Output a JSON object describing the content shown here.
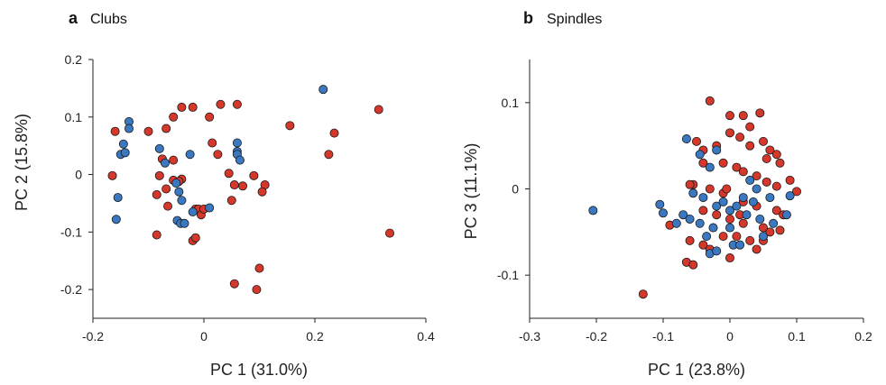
{
  "colors": {
    "series_red": "#d5382b",
    "series_blue": "#3a78c2"
  },
  "chart_data": [
    {
      "type": "scatter",
      "panel_letter": "a",
      "panel_title": "Clubs",
      "xlabel": "PC 1 (31.0%)",
      "ylabel": "PC 2 (15.8%)",
      "xlim": [
        -0.2,
        0.4
      ],
      "ylim": [
        -0.25,
        0.2
      ],
      "xticks": [
        -0.2,
        0,
        0.2,
        0.4
      ],
      "yticks": [
        -0.2,
        -0.1,
        0,
        0.1,
        0.2
      ],
      "xtick_labels": [
        "-0.2",
        "0",
        "0.2",
        "0.4"
      ],
      "ytick_labels": [
        "-0.2",
        "-0.1",
        "0",
        "0.1",
        "0.2"
      ],
      "grid": false,
      "series": [
        {
          "color": "#d5382b",
          "points": [
            [
              -0.16,
              0.075
            ],
            [
              -0.165,
              -0.002
            ],
            [
              -0.1,
              0.075
            ],
            [
              -0.075,
              0.027
            ],
            [
              -0.068,
              0.08
            ],
            [
              -0.055,
              0.1
            ],
            [
              -0.04,
              0.117
            ],
            [
              -0.02,
              0.117
            ],
            [
              0.01,
              0.1
            ],
            [
              0.03,
              0.122
            ],
            [
              0.06,
              0.122
            ],
            [
              0.015,
              0.055
            ],
            [
              0.025,
              0.035
            ],
            [
              -0.055,
              0.025
            ],
            [
              -0.08,
              -0.002
            ],
            [
              -0.068,
              -0.025
            ],
            [
              -0.055,
              -0.01
            ],
            [
              -0.04,
              -0.008
            ],
            [
              -0.045,
              -0.012
            ],
            [
              -0.065,
              -0.055
            ],
            [
              -0.085,
              -0.105
            ],
            [
              -0.085,
              -0.035
            ],
            [
              -0.015,
              -0.06
            ],
            [
              -0.01,
              -0.06
            ],
            [
              -0.005,
              -0.07
            ],
            [
              0.0,
              -0.06
            ],
            [
              -0.02,
              -0.115
            ],
            [
              -0.015,
              -0.11
            ],
            [
              0.045,
              0.002
            ],
            [
              0.055,
              -0.018
            ],
            [
              0.05,
              -0.045
            ],
            [
              0.07,
              -0.02
            ],
            [
              0.09,
              -0.002
            ],
            [
              0.11,
              -0.018
            ],
            [
              0.105,
              -0.03
            ],
            [
              0.155,
              0.085
            ],
            [
              0.225,
              0.035
            ],
            [
              0.235,
              0.072
            ],
            [
              0.315,
              0.113
            ],
            [
              0.335,
              -0.102
            ],
            [
              0.055,
              -0.19
            ],
            [
              0.095,
              -0.2
            ],
            [
              0.1,
              -0.163
            ]
          ]
        },
        {
          "color": "#3a78c2",
          "points": [
            [
              -0.135,
              0.092
            ],
            [
              -0.135,
              0.08
            ],
            [
              -0.145,
              0.053
            ],
            [
              -0.15,
              0.035
            ],
            [
              -0.142,
              0.038
            ],
            [
              -0.155,
              -0.04
            ],
            [
              -0.158,
              -0.078
            ],
            [
              -0.08,
              0.045
            ],
            [
              -0.07,
              0.02
            ],
            [
              -0.05,
              -0.015
            ],
            [
              -0.045,
              -0.03
            ],
            [
              -0.04,
              -0.045
            ],
            [
              -0.048,
              -0.08
            ],
            [
              -0.042,
              -0.085
            ],
            [
              -0.035,
              -0.085
            ],
            [
              -0.02,
              -0.065
            ],
            [
              -0.025,
              0.035
            ],
            [
              0.01,
              -0.058
            ],
            [
              0.06,
              0.055
            ],
            [
              0.06,
              0.04
            ],
            [
              0.06,
              0.035
            ],
            [
              0.065,
              0.025
            ],
            [
              0.215,
              0.148
            ]
          ]
        }
      ]
    },
    {
      "type": "scatter",
      "panel_letter": "b",
      "panel_title": "Spindles",
      "xlabel": "PC 1 (23.8%)",
      "ylabel": "PC 3 (11.1%)",
      "xlim": [
        -0.3,
        0.2
      ],
      "ylim": [
        -0.15,
        0.15
      ],
      "xticks": [
        -0.3,
        -0.2,
        -0.1,
        0,
        0.1,
        0.2
      ],
      "yticks": [
        -0.1,
        0,
        0.1
      ],
      "xtick_labels": [
        "-0.3",
        "-0.2",
        "-0.1",
        "0",
        "0.1",
        "0.2"
      ],
      "ytick_labels": [
        "-0.1",
        "0",
        "0.1"
      ],
      "grid": false,
      "series": [
        {
          "color": "#d5382b",
          "points": [
            [
              -0.03,
              0.102
            ],
            [
              0.0,
              0.085
            ],
            [
              0.02,
              0.085
            ],
            [
              0.045,
              0.088
            ],
            [
              0.03,
              0.072
            ],
            [
              0.0,
              0.065
            ],
            [
              0.05,
              0.055
            ],
            [
              0.06,
              0.045
            ],
            [
              0.07,
              0.04
            ],
            [
              0.075,
              0.03
            ],
            [
              0.055,
              0.035
            ],
            [
              -0.05,
              0.055
            ],
            [
              -0.04,
              0.045
            ],
            [
              -0.02,
              0.05
            ],
            [
              0.015,
              0.06
            ],
            [
              0.03,
              0.05
            ],
            [
              -0.04,
              0.03
            ],
            [
              -0.01,
              0.03
            ],
            [
              0.01,
              0.025
            ],
            [
              0.02,
              0.02
            ],
            [
              0.04,
              0.015
            ],
            [
              0.055,
              0.008
            ],
            [
              0.07,
              0.003
            ],
            [
              0.1,
              -0.003
            ],
            [
              0.09,
              0.01
            ],
            [
              -0.055,
              0.005
            ],
            [
              -0.06,
              0.005
            ],
            [
              -0.03,
              0.0
            ],
            [
              -0.01,
              -0.005
            ],
            [
              0.02,
              -0.015
            ],
            [
              0.04,
              -0.02
            ],
            [
              0.07,
              -0.025
            ],
            [
              0.08,
              -0.03
            ],
            [
              -0.04,
              -0.025
            ],
            [
              -0.02,
              -0.03
            ],
            [
              0.0,
              -0.035
            ],
            [
              0.02,
              -0.04
            ],
            [
              0.05,
              -0.045
            ],
            [
              0.06,
              -0.05
            ],
            [
              0.075,
              -0.048
            ],
            [
              -0.09,
              -0.042
            ],
            [
              -0.06,
              -0.06
            ],
            [
              -0.04,
              -0.065
            ],
            [
              -0.01,
              -0.055
            ],
            [
              0.01,
              -0.055
            ],
            [
              0.03,
              -0.06
            ],
            [
              0.05,
              -0.06
            ],
            [
              -0.065,
              -0.085
            ],
            [
              -0.055,
              -0.088
            ],
            [
              -0.03,
              -0.07
            ],
            [
              0.0,
              -0.08
            ],
            [
              0.04,
              -0.07
            ],
            [
              -0.13,
              -0.122
            ],
            [
              0.015,
              -0.03
            ],
            [
              -0.005,
              0.0
            ]
          ]
        },
        {
          "color": "#3a78c2",
          "points": [
            [
              -0.205,
              -0.025
            ],
            [
              -0.105,
              -0.018
            ],
            [
              -0.1,
              -0.028
            ],
            [
              -0.065,
              0.058
            ],
            [
              -0.045,
              0.04
            ],
            [
              -0.03,
              0.025
            ],
            [
              -0.02,
              0.045
            ],
            [
              -0.055,
              -0.005
            ],
            [
              -0.04,
              -0.01
            ],
            [
              -0.02,
              -0.02
            ],
            [
              -0.01,
              -0.015
            ],
            [
              0.0,
              -0.025
            ],
            [
              0.01,
              -0.02
            ],
            [
              0.02,
              -0.01
            ],
            [
              0.03,
              0.01
            ],
            [
              0.04,
              0.0
            ],
            [
              0.06,
              -0.01
            ],
            [
              0.09,
              -0.008
            ],
            [
              0.085,
              -0.03
            ],
            [
              0.065,
              -0.04
            ],
            [
              0.045,
              -0.035
            ],
            [
              0.05,
              -0.055
            ],
            [
              -0.07,
              -0.03
            ],
            [
              -0.06,
              -0.035
            ],
            [
              -0.045,
              -0.04
            ],
            [
              -0.035,
              -0.055
            ],
            [
              -0.025,
              -0.045
            ],
            [
              0.0,
              -0.045
            ],
            [
              0.005,
              -0.065
            ],
            [
              0.015,
              -0.065
            ],
            [
              -0.03,
              -0.075
            ],
            [
              -0.02,
              -0.072
            ],
            [
              0.035,
              -0.015
            ],
            [
              0.025,
              -0.03
            ],
            [
              -0.08,
              -0.04
            ]
          ]
        }
      ]
    }
  ]
}
